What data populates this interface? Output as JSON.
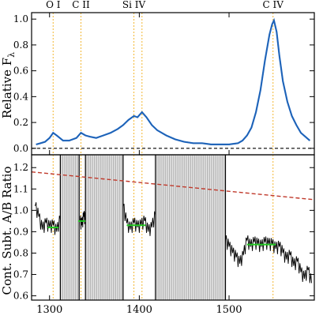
{
  "chart_data": [
    {
      "type": "line",
      "title": "",
      "ylabel": "Relative F",
      "ylabel_sub": "λ",
      "xlim": [
        1280,
        1595
      ],
      "ylim": [
        -0.05,
        1.05
      ],
      "yticks": [
        0.0,
        0.2,
        0.4,
        0.6,
        0.8,
        1.0
      ],
      "ytick_labels": [
        "0.0",
        "0.2",
        "0.4",
        "0.6",
        "0.8",
        "1.0"
      ],
      "zero_line": 0.0,
      "line_ids": [
        {
          "label": "O I",
          "x": 1304
        },
        {
          "label": "C II",
          "x": 1335
        },
        {
          "label": "Si IV",
          "x": 1394
        },
        {
          "label": "",
          "x": 1403
        },
        {
          "label": "C IV",
          "x": 1549
        }
      ],
      "series": [
        {
          "color": "#1f6fd1",
          "x": [
            1285,
            1290,
            1295,
            1300,
            1304,
            1308,
            1315,
            1322,
            1330,
            1335,
            1340,
            1345,
            1352,
            1360,
            1368,
            1376,
            1382,
            1388,
            1394,
            1398,
            1403,
            1408,
            1414,
            1420,
            1430,
            1440,
            1450,
            1460,
            1470,
            1480,
            1490,
            1500,
            1510,
            1515,
            1520,
            1525,
            1530,
            1535,
            1540,
            1545,
            1548,
            1550,
            1553,
            1556,
            1560,
            1565,
            1570,
            1575,
            1580,
            1590
          ],
          "y": [
            0.03,
            0.04,
            0.05,
            0.08,
            0.12,
            0.1,
            0.06,
            0.06,
            0.08,
            0.12,
            0.1,
            0.09,
            0.08,
            0.1,
            0.12,
            0.15,
            0.18,
            0.22,
            0.25,
            0.24,
            0.28,
            0.24,
            0.18,
            0.14,
            0.1,
            0.07,
            0.05,
            0.04,
            0.04,
            0.03,
            0.03,
            0.03,
            0.04,
            0.06,
            0.1,
            0.16,
            0.28,
            0.45,
            0.68,
            0.88,
            0.96,
            0.99,
            0.9,
            0.72,
            0.52,
            0.36,
            0.25,
            0.18,
            0.12,
            0.06
          ]
        }
      ]
    },
    {
      "type": "line",
      "xlabel": "",
      "ylabel": "Cont. Subt. A/B Ratio",
      "xlim": [
        1280,
        1595
      ],
      "ylim": [
        0.58,
        1.26
      ],
      "xticks": [
        1300,
        1400,
        1500
      ],
      "xtick_labels": [
        "1300",
        "1400",
        "1500"
      ],
      "yticks": [
        0.6,
        0.7,
        0.8,
        0.9,
        1.0,
        1.1,
        1.2
      ],
      "ytick_labels": [
        "0.6",
        "0.7",
        "0.8",
        "0.9",
        "1.0",
        "1.1",
        "1.2"
      ],
      "trend_line": {
        "x": [
          1280,
          1595
        ],
        "y": [
          1.18,
          1.05
        ],
        "color": "#c0392b"
      },
      "mean_segments": [
        {
          "x": [
            1298,
            1310
          ],
          "y": 0.92
        },
        {
          "x": [
            1332,
            1340
          ],
          "y": 0.95
        },
        {
          "x": [
            1386,
            1407
          ],
          "y": 0.93
        },
        {
          "x": [
            1520,
            1552
          ],
          "y": 0.84
        }
      ],
      "masked_regions": [
        {
          "x": [
            1312,
            1333
          ]
        },
        {
          "x": [
            1340,
            1382
          ]
        },
        {
          "x": [
            1418,
            1496
          ]
        }
      ],
      "series": [
        {
          "color": "#000000",
          "x": [
            1284,
            1288,
            1292,
            1296,
            1300,
            1304,
            1308,
            1312,
            1334,
            1336,
            1338,
            1340,
            1382,
            1386,
            1390,
            1394,
            1398,
            1402,
            1406,
            1410,
            1414,
            1418,
            1496,
            1500,
            1504,
            1508,
            1512,
            1516,
            1520,
            1524,
            1528,
            1532,
            1536,
            1540,
            1544,
            1548,
            1552,
            1556,
            1560,
            1564,
            1568,
            1572,
            1576,
            1580,
            1584,
            1588,
            1592
          ],
          "y": [
            1.02,
            0.97,
            0.91,
            0.94,
            0.92,
            0.93,
            0.9,
            0.96,
            0.95,
            0.93,
            0.97,
            0.96,
            1.02,
            0.94,
            0.91,
            0.94,
            0.92,
            0.93,
            0.95,
            0.9,
            0.92,
            0.98,
            0.86,
            0.83,
            0.8,
            0.78,
            0.75,
            0.79,
            0.86,
            0.83,
            0.85,
            0.84,
            0.83,
            0.85,
            0.84,
            0.84,
            0.82,
            0.83,
            0.8,
            0.77,
            0.79,
            0.74,
            0.76,
            0.71,
            0.68,
            0.72,
            0.66
          ]
        }
      ]
    }
  ]
}
